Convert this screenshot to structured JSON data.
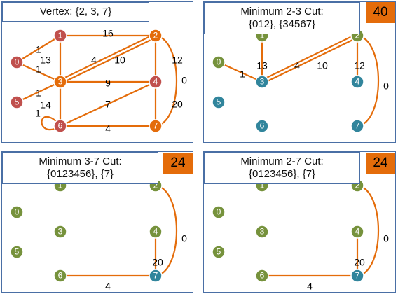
{
  "panels": [
    {
      "id": "p1",
      "title_lines": [
        "Vertex: {2, 3, 7}"
      ],
      "badge": "",
      "nodes": [
        {
          "label": "0",
          "color": "#c0504d"
        },
        {
          "label": "1",
          "color": "#c0504d"
        },
        {
          "label": "2",
          "color": "#e46c0a"
        },
        {
          "label": "3",
          "color": "#e46c0a"
        },
        {
          "label": "4",
          "color": "#c0504d"
        },
        {
          "label": "5",
          "color": "#c0504d"
        },
        {
          "label": "6",
          "color": "#c0504d"
        },
        {
          "label": "7",
          "color": "#e46c0a"
        }
      ],
      "edges": [
        {
          "from": "0",
          "to": "1",
          "weight": "1",
          "style": "line"
        },
        {
          "from": "0",
          "to": "3",
          "weight": "1",
          "style": "line"
        },
        {
          "from": "1",
          "to": "2",
          "weight": "16",
          "style": "line"
        },
        {
          "from": "1",
          "to": "3",
          "weight": "13",
          "style": "line"
        },
        {
          "from": "3",
          "to": "2",
          "weight": "4",
          "style": "line"
        },
        {
          "from": "3",
          "to": "2",
          "weight": "10",
          "style": "line"
        },
        {
          "from": "2",
          "to": "4",
          "weight": "12",
          "style": "line"
        },
        {
          "from": "3",
          "to": "4",
          "weight": "9",
          "style": "line"
        },
        {
          "from": "5",
          "to": "3",
          "weight": "1",
          "style": "line"
        },
        {
          "from": "3",
          "to": "6",
          "weight": "14",
          "style": "line"
        },
        {
          "from": "6",
          "to": "4",
          "weight": "7",
          "style": "line"
        },
        {
          "from": "4",
          "to": "7",
          "weight": "20",
          "style": "line"
        },
        {
          "from": "6",
          "to": "7",
          "weight": "4",
          "style": "line"
        },
        {
          "from": "2",
          "to": "7",
          "weight": "0",
          "style": "arc"
        },
        {
          "from": "6",
          "to": "6",
          "weight": "1",
          "style": "loop"
        }
      ]
    },
    {
      "id": "p2",
      "title_lines": [
        "Minimum 2-3 Cut:",
        "{012}, {34567}"
      ],
      "badge": "40",
      "nodes": [
        {
          "label": "0",
          "color": "#76923c"
        },
        {
          "label": "1",
          "color": "#76923c"
        },
        {
          "label": "2",
          "color": "#76923c"
        },
        {
          "label": "3",
          "color": "#31859c"
        },
        {
          "label": "4",
          "color": "#31859c"
        },
        {
          "label": "5",
          "color": "#31859c"
        },
        {
          "label": "6",
          "color": "#31859c"
        },
        {
          "label": "7",
          "color": "#31859c"
        }
      ],
      "edges": [
        {
          "from": "0",
          "to": "3",
          "weight": "1",
          "style": "line"
        },
        {
          "from": "1",
          "to": "3",
          "weight": "13",
          "style": "line"
        },
        {
          "from": "3",
          "to": "2",
          "weight": "4",
          "style": "line"
        },
        {
          "from": "3",
          "to": "2",
          "weight": "10",
          "style": "line"
        },
        {
          "from": "2",
          "to": "4",
          "weight": "12",
          "style": "line"
        },
        {
          "from": "2",
          "to": "7",
          "weight": "0",
          "style": "arc"
        }
      ]
    },
    {
      "id": "p3",
      "title_lines": [
        "Minimum 3-7 Cut:",
        "{0123456}, {7}"
      ],
      "badge": "24",
      "nodes": [
        {
          "label": "0",
          "color": "#76923c"
        },
        {
          "label": "1",
          "color": "#76923c"
        },
        {
          "label": "2",
          "color": "#76923c"
        },
        {
          "label": "3",
          "color": "#76923c"
        },
        {
          "label": "4",
          "color": "#76923c"
        },
        {
          "label": "5",
          "color": "#76923c"
        },
        {
          "label": "6",
          "color": "#76923c"
        },
        {
          "label": "7",
          "color": "#31859c"
        }
      ],
      "edges": [
        {
          "from": "2",
          "to": "7",
          "weight": "0",
          "style": "arc"
        },
        {
          "from": "4",
          "to": "7",
          "weight": "20",
          "style": "line"
        },
        {
          "from": "6",
          "to": "7",
          "weight": "4",
          "style": "line"
        }
      ]
    },
    {
      "id": "p4",
      "title_lines": [
        "Minimum 2-7 Cut:",
        "{0123456}, {7}"
      ],
      "badge": "24",
      "nodes": [
        {
          "label": "0",
          "color": "#76923c"
        },
        {
          "label": "1",
          "color": "#76923c"
        },
        {
          "label": "2",
          "color": "#76923c"
        },
        {
          "label": "3",
          "color": "#76923c"
        },
        {
          "label": "4",
          "color": "#76923c"
        },
        {
          "label": "5",
          "color": "#76923c"
        },
        {
          "label": "6",
          "color": "#76923c"
        },
        {
          "label": "7",
          "color": "#31859c"
        }
      ],
      "edges": [
        {
          "from": "2",
          "to": "7",
          "weight": "0",
          "style": "arc"
        },
        {
          "from": "4",
          "to": "7",
          "weight": "20",
          "style": "line"
        },
        {
          "from": "6",
          "to": "7",
          "weight": "4",
          "style": "line"
        }
      ]
    }
  ],
  "colors": {
    "edge": "#e46c0a",
    "node_stroke": "#ffffff",
    "node_text": "#ffffff"
  }
}
